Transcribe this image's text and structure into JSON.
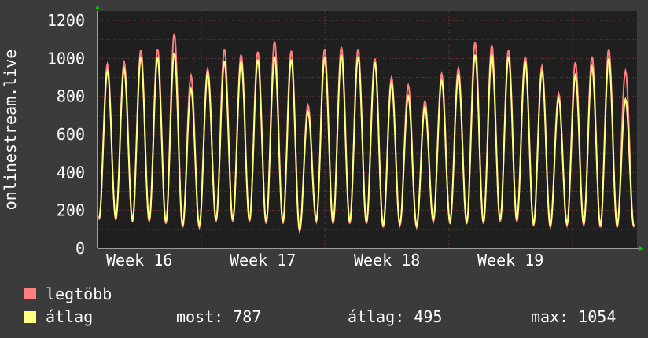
{
  "chart_data": {
    "type": "line",
    "ylabel": "onlinestream.live",
    "ylim": [
      0,
      1250
    ],
    "yticks": [
      0,
      200,
      400,
      600,
      800,
      1000,
      1200
    ],
    "xticks": [
      "Week 16",
      "Week 17",
      "Week 18",
      "Week 19"
    ],
    "grid": true,
    "colors": {
      "legtobb": "#ff7f7f",
      "atlag": "#ffff7f",
      "background": "#1f1f1f",
      "page": "#3b3b3b"
    },
    "series": [
      {
        "name": "legtöbb",
        "peaks": [
          970,
          980,
          1045,
          1050,
          1130,
          910,
          945,
          1050,
          1020,
          1035,
          1090,
          1040,
          755,
          1050,
          1060,
          1050,
          1000,
          900,
          860,
          775,
          920,
          950,
          1085,
          1070,
          1045,
          1010,
          960,
          815,
          980,
          1010,
          1050,
          935
        ],
        "troughs": [
          150,
          150,
          140,
          140,
          130,
          110,
          110,
          140,
          140,
          140,
          130,
          130,
          90,
          140,
          130,
          130,
          130,
          110,
          120,
          110,
          140,
          130,
          130,
          130,
          140,
          140,
          120,
          110,
          120,
          120,
          110,
          110
        ]
      },
      {
        "name": "átlag",
        "peaks": [
          935,
          945,
          1010,
          1005,
          1030,
          840,
          925,
          985,
          985,
          995,
          1010,
          995,
          720,
          1005,
          1020,
          1010,
          980,
          870,
          800,
          745,
          885,
          915,
          1020,
          1020,
          1010,
          985,
          930,
          790,
          910,
          955,
          1000,
          785
        ],
        "troughs": [
          160,
          160,
          150,
          150,
          140,
          120,
          120,
          150,
          150,
          150,
          140,
          140,
          100,
          150,
          140,
          140,
          140,
          120,
          130,
          120,
          150,
          140,
          140,
          140,
          150,
          150,
          130,
          120,
          130,
          130,
          120,
          120
        ]
      }
    ]
  },
  "legend": {
    "items": [
      {
        "label": "legtöbb",
        "color": "#ff7f7f"
      },
      {
        "label": "átlag",
        "color": "#ffff7f"
      }
    ],
    "stats": {
      "now": "most: 787",
      "avg": "átlag: 495",
      "max": "max: 1054"
    }
  }
}
